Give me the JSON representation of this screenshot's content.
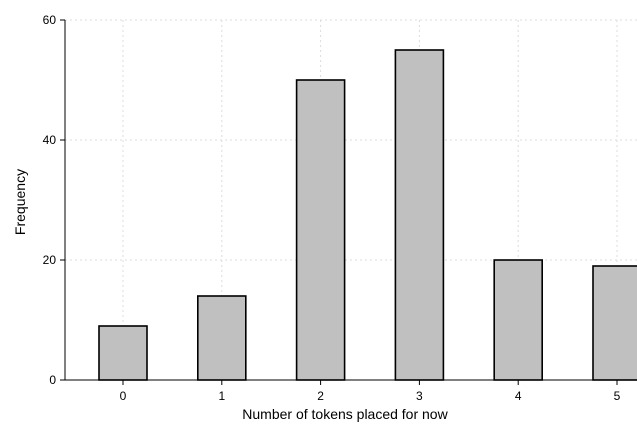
{
  "chart_data": {
    "type": "bar",
    "categories": [
      "0",
      "1",
      "2",
      "3",
      "4",
      "5"
    ],
    "values": [
      9,
      14,
      50,
      55,
      20,
      19
    ],
    "xlabel": "Number of tokens placed for now",
    "ylabel": "Frequency",
    "ylim": [
      0,
      60
    ],
    "yticks": [
      "0",
      "20",
      "40",
      "60"
    ],
    "grid": true,
    "colors": {
      "bar_fill": "#c0c0c0",
      "bar_stroke": "#000000",
      "grid": "#dcdcdc"
    }
  }
}
